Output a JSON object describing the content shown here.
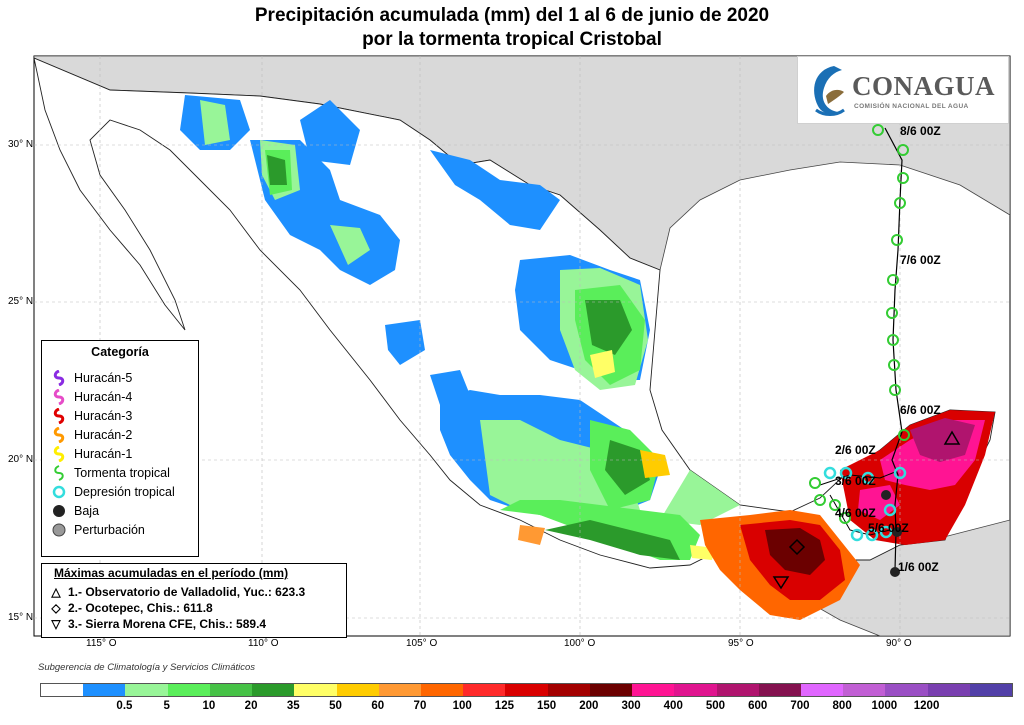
{
  "title_line1": "Precipitación acumulada (mm) del 1 al 6 de junio de 2020",
  "title_line2": "por la tormenta tropical Cristobal",
  "logo": {
    "name": "CONAGUA",
    "subtitle": "COMISIÓN NACIONAL DEL AGUA"
  },
  "latitude_labels": [
    "30° N",
    "25° N",
    "20° N",
    "15° N"
  ],
  "longitude_labels": [
    "115° O",
    "110° O",
    "105° O",
    "100° O",
    "95° O",
    "90° O"
  ],
  "legend": {
    "title": "Categoría",
    "items": [
      {
        "label": "Huracán-5",
        "color": "#8a2be2"
      },
      {
        "label": "Huracán-4",
        "color": "#e64cc8"
      },
      {
        "label": "Huracán-3",
        "color": "#e00000"
      },
      {
        "label": "Huracán-2",
        "color": "#ff9900"
      },
      {
        "label": "Huracán-1",
        "color": "#ffee00"
      },
      {
        "label": "Tormenta tropical",
        "color": "#33cc33"
      },
      {
        "label": "Depresión tropical",
        "color": "#33dddd"
      },
      {
        "label": "Baja",
        "color": "#222222"
      },
      {
        "label": "Perturbación",
        "color": "#999999"
      }
    ]
  },
  "maxima": {
    "title": "Máximas acumuladas en el período (mm)",
    "rows": [
      {
        "symbol": "△",
        "text": "1.- Observatorio de Valladolid, Yuc.: 623.3"
      },
      {
        "symbol": "◇",
        "text": "2.- Ocotepec, Chis.: 611.8"
      },
      {
        "symbol": "▽",
        "text": "3.- Sierra Morena CFE, Chis.: 589.4"
      }
    ]
  },
  "track_dates": [
    "8/6 00Z",
    "7/6 00Z",
    "6/6 00Z",
    "2/6 00Z",
    "3/6 00Z",
    "4/6 00Z",
    "5/6 00Z",
    "1/6 00Z"
  ],
  "credit": "Subgerencia de Climatología y Servicios Climáticos",
  "colorbar": {
    "colors": [
      "#ffffff",
      "#1e90ff",
      "#98f598",
      "#5aee5a",
      "#46c246",
      "#2b9a2b",
      "#ffff66",
      "#ffcc00",
      "#ff9933",
      "#ff6600",
      "#ff2a2a",
      "#d90000",
      "#a30000",
      "#6b0000",
      "#ff1493",
      "#e0158f",
      "#b0146e",
      "#84124f",
      "#e066ff",
      "#c15fd4",
      "#9a4fc4",
      "#7a3fb0",
      "#5240a8"
    ],
    "labels": [
      "0.5",
      "5",
      "10",
      "20",
      "35",
      "50",
      "60",
      "70",
      "100",
      "125",
      "150",
      "200",
      "300",
      "400",
      "500",
      "600",
      "700",
      "800",
      "1000",
      "1200"
    ]
  }
}
